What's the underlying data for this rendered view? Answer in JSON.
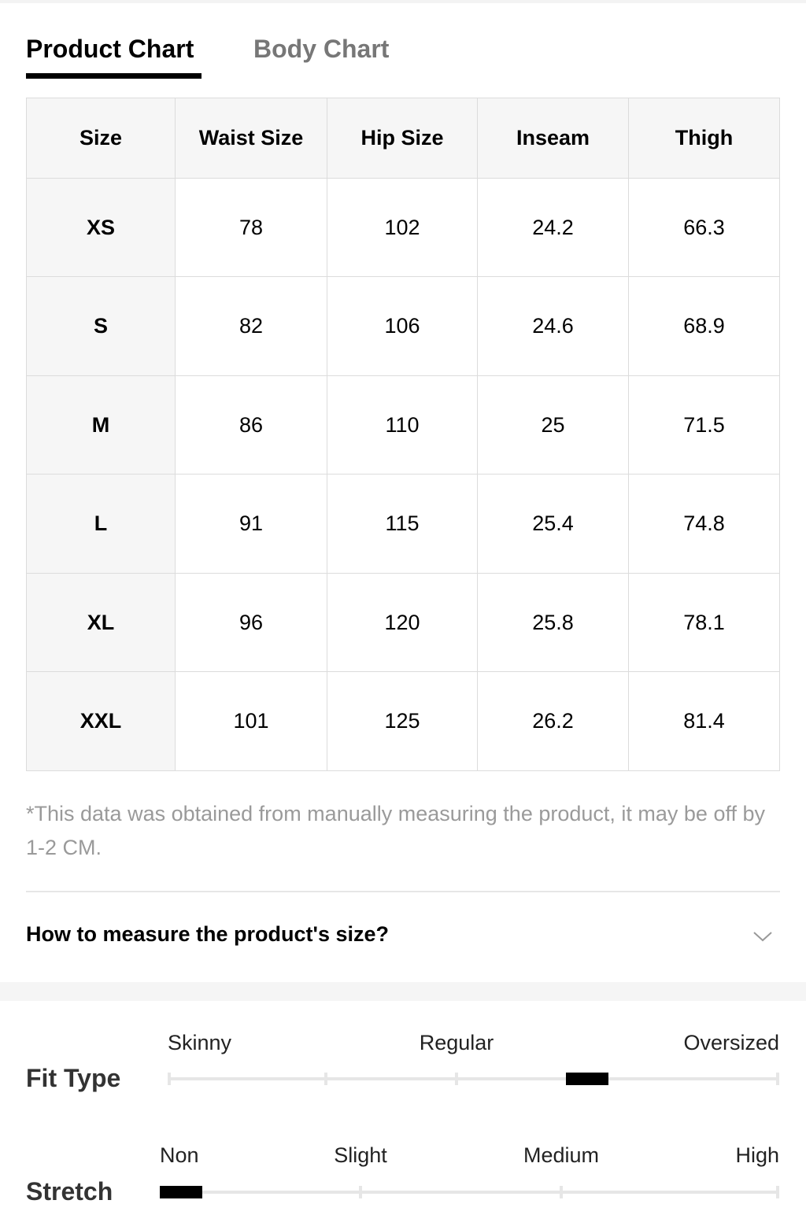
{
  "tabs": [
    "Product Chart",
    "Body Chart"
  ],
  "table": {
    "header": [
      "Size",
      "Waist Size",
      "Hip Size",
      "Inseam",
      "Thigh"
    ],
    "rows": [
      [
        "XS",
        "78",
        "102",
        "24.2",
        "66.3"
      ],
      [
        "S",
        "82",
        "106",
        "24.6",
        "68.9"
      ],
      [
        "M",
        "86",
        "110",
        "25",
        "71.5"
      ],
      [
        "L",
        "91",
        "115",
        "25.4",
        "74.8"
      ],
      [
        "XL",
        "96",
        "120",
        "25.8",
        "78.1"
      ],
      [
        "XXL",
        "101",
        "125",
        "26.2",
        "81.4"
      ]
    ]
  },
  "note": "*This data was obtained from manually measuring the product, it may be off by 1-2 CM.",
  "accordion": "How to measure the product's size?",
  "fit_type": {
    "label": "Fit Type",
    "options": [
      "Skinny",
      "Regular",
      "Oversized"
    ]
  },
  "stretch": {
    "label": "Stretch",
    "options": [
      "Non",
      "Slight",
      "Medium",
      "High"
    ]
  }
}
